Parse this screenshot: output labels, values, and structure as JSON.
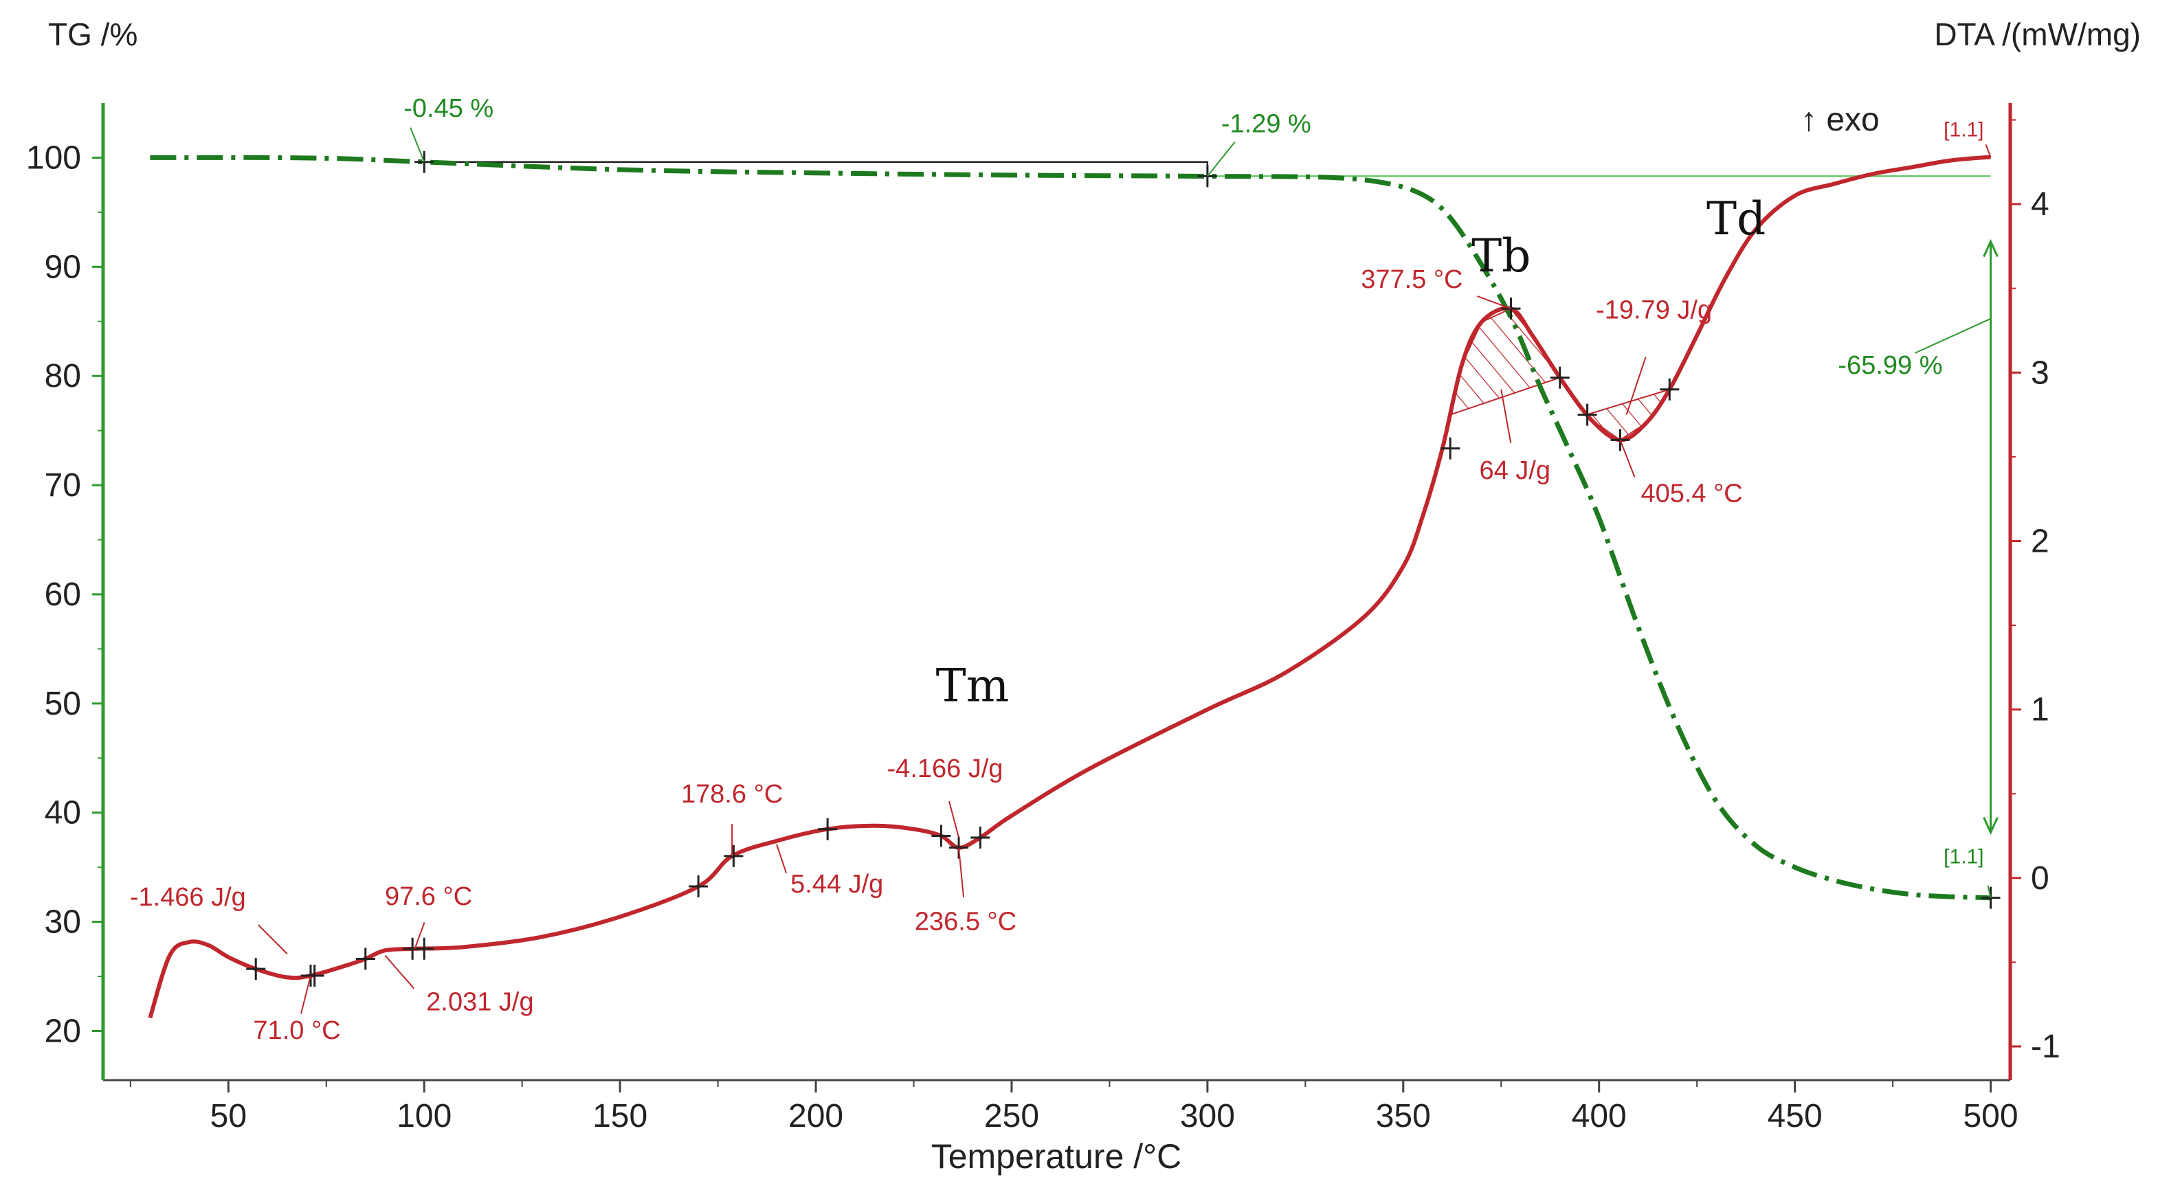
{
  "chart_data": {
    "type": "line",
    "title": "",
    "xlabel": "Temperature /°C",
    "ylabel_left": "TG /%",
    "ylabel_right": "DTA /(mW/mg)",
    "exo_label": "↑ exo",
    "xlim": [
      18,
      505
    ],
    "ylim_left": [
      15.5,
      105
    ],
    "ylim_right": [
      -1.2,
      4.6
    ],
    "x_ticks": [
      "50",
      "100",
      "150",
      "200",
      "250",
      "300",
      "350",
      "400",
      "450",
      "500"
    ],
    "y_left_ticks": [
      "20",
      "30",
      "40",
      "50",
      "60",
      "70",
      "80",
      "90",
      "100"
    ],
    "y_right_ticks": [
      "-1",
      "0",
      "1",
      "2",
      "3",
      "4"
    ],
    "colors": {
      "tg": "#1e7a1e",
      "dta": "#c0272d",
      "axis_left": "#2e9a2e",
      "axis_right": "#c0272d"
    },
    "series": [
      {
        "name": "TG",
        "axis": "left",
        "style": "dash-dot",
        "x": [
          30,
          40,
          60,
          80,
          100,
          150,
          200,
          250,
          300,
          330,
          345,
          355,
          362,
          370,
          378,
          385,
          392,
          400,
          410,
          420,
          430,
          440,
          450,
          460,
          470,
          480,
          490,
          500
        ],
        "values": [
          100,
          100,
          100,
          99.9,
          99.6,
          98.9,
          98.6,
          98.4,
          98.3,
          98.2,
          97.7,
          96.6,
          94.5,
          90.2,
          85.0,
          79.0,
          73.5,
          67.0,
          57.0,
          48.0,
          41.0,
          37.0,
          35.0,
          33.8,
          33.0,
          32.5,
          32.3,
          32.2
        ]
      },
      {
        "name": "DTA",
        "axis": "right",
        "style": "solid",
        "x": [
          30,
          35,
          40,
          45,
          50,
          57,
          65,
          71,
          80,
          85,
          90,
          97.6,
          110,
          130,
          150,
          170,
          178.6,
          190,
          203,
          215,
          225,
          232,
          236.5,
          242,
          250,
          270,
          300,
          320,
          340,
          350,
          355,
          360,
          365,
          370,
          377.5,
          383,
          390,
          398,
          405.4,
          412,
          418,
          425,
          432,
          440,
          450,
          460,
          470,
          480,
          490,
          500
        ],
        "values": [
          -0.83,
          -0.46,
          -0.38,
          -0.4,
          -0.47,
          -0.54,
          -0.59,
          -0.58,
          -0.52,
          -0.48,
          -0.43,
          -0.42,
          -0.41,
          -0.35,
          -0.23,
          -0.05,
          0.13,
          0.22,
          0.29,
          0.31,
          0.29,
          0.25,
          0.18,
          0.24,
          0.37,
          0.65,
          1.0,
          1.22,
          1.55,
          1.85,
          2.15,
          2.55,
          3.05,
          3.3,
          3.38,
          3.22,
          2.97,
          2.72,
          2.6,
          2.7,
          2.9,
          3.22,
          3.55,
          3.85,
          4.05,
          4.12,
          4.18,
          4.22,
          4.26,
          4.28
        ]
      }
    ],
    "tg_reference_line": 98.3,
    "tg_step_segment": {
      "x_start": 100,
      "x_end": 300,
      "level": 99.6
    },
    "tg_annotations": [
      {
        "label": "-0.45 %",
        "x": 100,
        "y": 99.6
      },
      {
        "label": "-1.29 %",
        "x": 300,
        "y": 98.3
      },
      {
        "label": "-65.99 %",
        "x": 500,
        "y_from": 98.3,
        "y_to": 32.2
      },
      {
        "label": "[1.1]",
        "x": 500,
        "y": 32.2
      }
    ],
    "dta_annotations": [
      {
        "label": "-1.466 J/g",
        "x": 65,
        "y": -0.45
      },
      {
        "label": "71.0 °C",
        "x": 71,
        "y": -0.58
      },
      {
        "label": "97.6 °C",
        "x": 97.6,
        "y": -0.42
      },
      {
        "label": "2.031 J/g",
        "x": 90,
        "y": -0.46
      },
      {
        "label": "178.6 °C",
        "x": 178.6,
        "y": 0.13
      },
      {
        "label": "5.44 J/g",
        "x": 190,
        "y": 0.2
      },
      {
        "label": "-4.166 J/g",
        "x": 236.5,
        "y": 0.24
      },
      {
        "label": "236.5 °C",
        "x": 236.5,
        "y": 0.18
      },
      {
        "label": "377.5 °C",
        "x": 377.5,
        "y": 3.38
      },
      {
        "label": "64 J/g",
        "x": 375,
        "y": 2.9
      },
      {
        "label": "-19.79 J/g",
        "x": 407,
        "y": 2.75
      },
      {
        "label": "405.4 °C",
        "x": 405.4,
        "y": 2.6
      },
      {
        "label": "[1.1]",
        "x": 500,
        "y": 4.28
      }
    ],
    "dta_markers": [
      {
        "x": 57,
        "y": -0.54
      },
      {
        "x": 71,
        "y": -0.58
      },
      {
        "x": 72,
        "y": -0.58
      },
      {
        "x": 85,
        "y": -0.48
      },
      {
        "x": 97,
        "y": -0.42
      },
      {
        "x": 100,
        "y": -0.42
      },
      {
        "x": 170,
        "y": -0.05
      },
      {
        "x": 179,
        "y": 0.13
      },
      {
        "x": 203,
        "y": 0.29
      },
      {
        "x": 232,
        "y": 0.25
      },
      {
        "x": 236.5,
        "y": 0.18
      },
      {
        "x": 242,
        "y": 0.24
      },
      {
        "x": 362,
        "y": 2.55
      },
      {
        "x": 377.5,
        "y": 3.38
      },
      {
        "x": 390,
        "y": 2.97
      },
      {
        "x": 397,
        "y": 2.75
      },
      {
        "x": 405.4,
        "y": 2.6
      },
      {
        "x": 418,
        "y": 2.9
      }
    ],
    "hatched_regions": [
      {
        "x_start": 362,
        "x_end": 390,
        "label": "64 J/g"
      },
      {
        "x_start": 397,
        "x_end": 418,
        "label": "-19.79 J/g"
      }
    ],
    "peak_labels": [
      {
        "label": "Tm",
        "x": 240,
        "y": 1.05
      },
      {
        "label": "Tb",
        "x": 375,
        "y": 3.6
      },
      {
        "label": "Td",
        "x": 435,
        "y": 3.82
      }
    ]
  }
}
